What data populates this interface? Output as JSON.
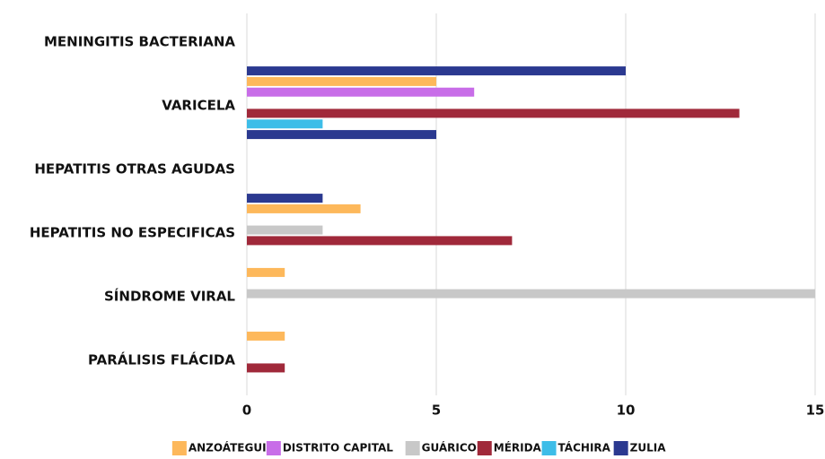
{
  "chart_data": {
    "type": "hbar",
    "categories": [
      "MENINGITIS BACTERIANA",
      "VARICELA",
      "HEPATITIS OTRAS AGUDAS",
      "HEPATITIS NO ESPECIFICAS",
      "SÍNDROME VIRAL",
      "PARÁLISIS FLÁCIDA"
    ],
    "series": [
      {
        "name": "ANZOÁTEGUI",
        "color": "#fdb85b",
        "values": [
          null,
          5,
          null,
          3,
          1,
          1
        ]
      },
      {
        "name": "DISTRITO CAPITAL",
        "color": "#c86de8",
        "values": [
          null,
          6,
          null,
          null,
          null,
          null
        ]
      },
      {
        "name": "GUÁRICO",
        "color": "#c8c8c8",
        "values": [
          null,
          null,
          null,
          2,
          15,
          null
        ]
      },
      {
        "name": "MÉRIDA",
        "color": "#a0293a",
        "values": [
          null,
          13,
          null,
          7,
          null,
          1
        ]
      },
      {
        "name": "TÁCHIRA",
        "color": "#3dbde8",
        "values": [
          null,
          2,
          null,
          null,
          null,
          null
        ]
      },
      {
        "name": "ZULIA",
        "color": "#2b3990",
        "values": [
          10,
          5,
          2,
          null,
          null,
          null
        ]
      }
    ],
    "xlim": [
      0,
      15
    ],
    "xticks": [
      0,
      5,
      10,
      15
    ],
    "grid": true,
    "legend": "bottom"
  }
}
